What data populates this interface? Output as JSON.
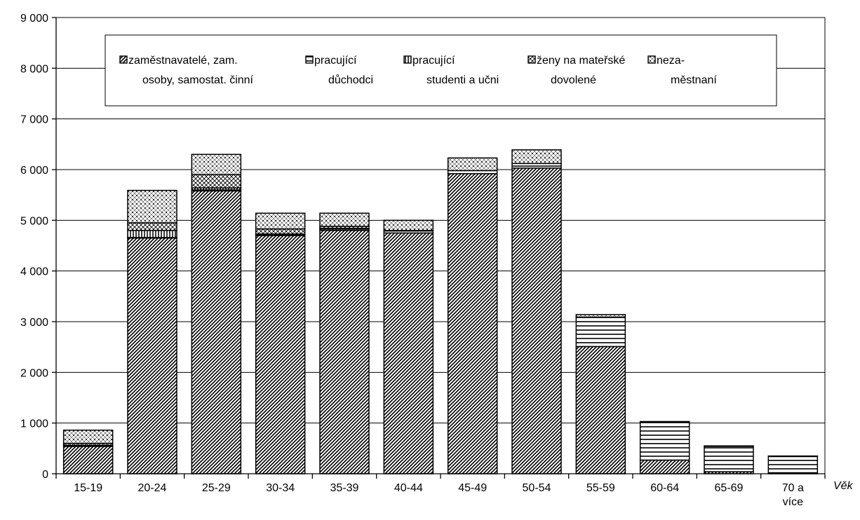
{
  "chart_data": {
    "type": "bar",
    "stacked": true,
    "title": "",
    "xlabel": "Věk",
    "ylabel": "",
    "ylim": [
      0,
      9000
    ],
    "yticks": [
      0,
      1000,
      2000,
      3000,
      4000,
      5000,
      6000,
      7000,
      8000,
      9000
    ],
    "ytick_labels": [
      "0",
      "1 000",
      "2 000",
      "3 000",
      "4 000",
      "5 000",
      "6 000",
      "7 000",
      "8 000",
      "9 000"
    ],
    "grid": true,
    "legend_position": "top-inside",
    "categories": [
      "15-19",
      "20-24",
      "25-29",
      "30-34",
      "35-39",
      "40-44",
      "45-49",
      "50-54",
      "55-59",
      "60-64",
      "65-69",
      "70 a více"
    ],
    "series": [
      {
        "name": "zaměstnavatelé, zam. osoby, samostat. činní",
        "legend_lines": [
          "zaměstnavatelé, zam.",
          "osoby, samostat. činní"
        ],
        "pattern": "diag",
        "values": [
          540,
          4650,
          5580,
          4700,
          4800,
          4750,
          5920,
          6030,
          2510,
          270,
          40,
          20
        ]
      },
      {
        "name": "pracující důchodci",
        "legend_lines": [
          "pracující",
          "důchodci"
        ],
        "pattern": "hlines",
        "values": [
          0,
          10,
          20,
          20,
          30,
          40,
          60,
          90,
          580,
          750,
          500,
          320
        ]
      },
      {
        "name": "pracující studenti a učni",
        "legend_lines": [
          "pracující",
          "studenti a učni"
        ],
        "pattern": "vlines",
        "values": [
          20,
          140,
          40,
          10,
          10,
          0,
          0,
          0,
          0,
          0,
          0,
          0
        ]
      },
      {
        "name": "ženy na mateřské dovolené",
        "legend_lines": [
          "ženy na mateřské",
          "dovolené"
        ],
        "pattern": "cross",
        "values": [
          40,
          150,
          260,
          100,
          40,
          10,
          0,
          0,
          0,
          0,
          0,
          0
        ]
      },
      {
        "name": "neza-městnaní",
        "legend_lines": [
          "neza-",
          "městnaní"
        ],
        "pattern": "dots",
        "values": [
          260,
          640,
          400,
          310,
          260,
          200,
          250,
          270,
          50,
          10,
          10,
          10
        ]
      }
    ]
  }
}
